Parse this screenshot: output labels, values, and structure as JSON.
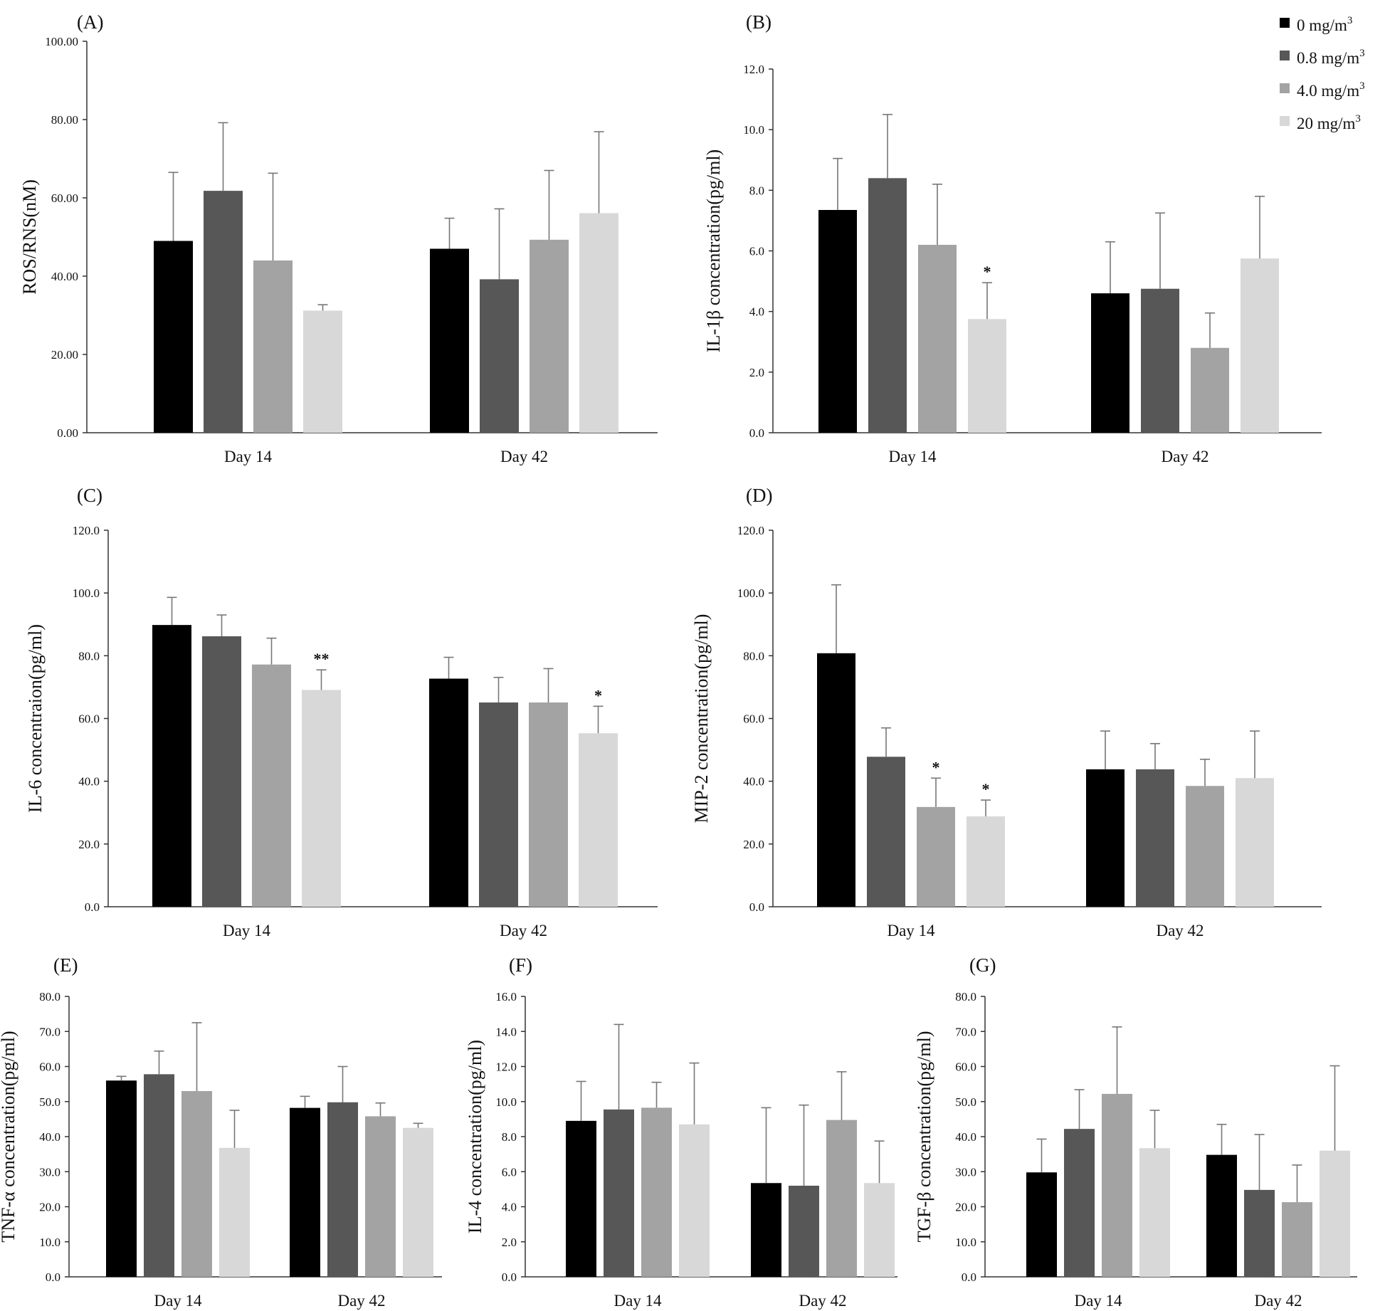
{
  "figure": {
    "legend": {
      "entries": [
        {
          "base": "0 mg/m",
          "sup": "3",
          "color": "#000000"
        },
        {
          "base": "0.8 mg/m",
          "sup": "3",
          "color": "#575757"
        },
        {
          "base": "4.0 mg/m",
          "sup": "3",
          "color": "#a3a3a3"
        },
        {
          "base": "20 mg/m",
          "sup": "3",
          "color": "#d8d8d8"
        }
      ]
    }
  },
  "chart_data": [
    {
      "panel": "(A)",
      "type": "bar",
      "ylabel": "ROS/RNS(nM)",
      "categories": [
        "Day 14",
        "Day 42"
      ],
      "ylim": [
        0,
        100
      ],
      "ytick_step": 20,
      "tick_decimals": 2,
      "series": [
        {
          "name": "0 mg/m3",
          "values": [
            49.0,
            47.0
          ],
          "errors": [
            17.5,
            7.8
          ]
        },
        {
          "name": "0.8 mg/m3",
          "values": [
            61.8,
            39.2
          ],
          "errors": [
            17.4,
            18.0
          ]
        },
        {
          "name": "4.0 mg/m3",
          "values": [
            44.0,
            49.3
          ],
          "errors": [
            22.3,
            17.7
          ]
        },
        {
          "name": "20 mg/m3",
          "values": [
            31.2,
            56.1
          ],
          "errors": [
            1.5,
            20.8
          ]
        }
      ],
      "annotations": [
        [
          "",
          ""
        ],
        [
          "",
          ""
        ],
        [
          "",
          ""
        ],
        [
          "",
          ""
        ]
      ]
    },
    {
      "panel": "(B)",
      "type": "bar",
      "ylabel": "IL-1β concentration(pg/ml)",
      "categories": [
        "Day 14",
        "Day 42"
      ],
      "ylim": [
        0,
        12
      ],
      "ytick_step": 2,
      "tick_decimals": 1,
      "series": [
        {
          "name": "0 mg/m3",
          "values": [
            7.35,
            4.6
          ],
          "errors": [
            1.7,
            1.7
          ]
        },
        {
          "name": "0.8 mg/m3",
          "values": [
            8.4,
            4.75
          ],
          "errors": [
            2.1,
            2.5
          ]
        },
        {
          "name": "4.0 mg/m3",
          "values": [
            6.2,
            2.8
          ],
          "errors": [
            2.0,
            1.15
          ]
        },
        {
          "name": "20 mg/m3",
          "values": [
            3.75,
            5.75
          ],
          "errors": [
            1.2,
            2.05
          ]
        }
      ],
      "annotations": [
        [
          "",
          ""
        ],
        [
          "",
          ""
        ],
        [
          "",
          ""
        ],
        [
          "*",
          ""
        ]
      ]
    },
    {
      "panel": "(C)",
      "type": "bar",
      "ylabel": "IL-6 concentraion(pg/ml)",
      "categories": [
        "Day 14",
        "Day 42"
      ],
      "ylim": [
        0,
        120
      ],
      "ytick_step": 20,
      "tick_decimals": 1,
      "series": [
        {
          "name": "0 mg/m3",
          "values": [
            89.8,
            72.7
          ],
          "errors": [
            8.8,
            6.8
          ]
        },
        {
          "name": "0.8 mg/m3",
          "values": [
            86.2,
            65.1
          ],
          "errors": [
            6.8,
            8.0
          ]
        },
        {
          "name": "4.0 mg/m3",
          "values": [
            77.2,
            65.1
          ],
          "errors": [
            8.4,
            10.8
          ]
        },
        {
          "name": "20 mg/m3",
          "values": [
            69.1,
            55.3
          ],
          "errors": [
            6.4,
            8.6
          ]
        }
      ],
      "annotations": [
        [
          "",
          ""
        ],
        [
          "",
          ""
        ],
        [
          "",
          ""
        ],
        [
          "**",
          "*"
        ]
      ]
    },
    {
      "panel": "(D)",
      "type": "bar",
      "ylabel": "MIP-2 concentration(pg/ml)",
      "categories": [
        "Day 14",
        "Day 42"
      ],
      "ylim": [
        0,
        120
      ],
      "ytick_step": 20,
      "tick_decimals": 1,
      "series": [
        {
          "name": "0 mg/m3",
          "values": [
            80.8,
            43.8
          ],
          "errors": [
            21.8,
            12.2
          ]
        },
        {
          "name": "0.8 mg/m3",
          "values": [
            47.8,
            43.8
          ],
          "errors": [
            9.2,
            8.2
          ]
        },
        {
          "name": "4.0 mg/m3",
          "values": [
            31.8,
            38.5
          ],
          "errors": [
            9.2,
            8.5
          ]
        },
        {
          "name": "20 mg/m3",
          "values": [
            28.8,
            41.0
          ],
          "errors": [
            5.2,
            15.0
          ]
        }
      ],
      "annotations": [
        [
          "",
          ""
        ],
        [
          "",
          ""
        ],
        [
          "*",
          ""
        ],
        [
          "*",
          ""
        ]
      ]
    },
    {
      "panel": "(E)",
      "type": "bar",
      "ylabel": "TNF-α concentration(pg/ml)",
      "categories": [
        "Day 14",
        "Day 42"
      ],
      "ylim": [
        0,
        80
      ],
      "ytick_step": 10,
      "tick_decimals": 1,
      "series": [
        {
          "name": "0 mg/m3",
          "values": [
            56.0,
            48.2
          ],
          "errors": [
            1.2,
            3.3
          ]
        },
        {
          "name": "0.8 mg/m3",
          "values": [
            57.8,
            49.8
          ],
          "errors": [
            6.6,
            10.2
          ]
        },
        {
          "name": "4.0 mg/m3",
          "values": [
            53.0,
            45.8
          ],
          "errors": [
            19.5,
            3.8
          ]
        },
        {
          "name": "20 mg/m3",
          "values": [
            36.8,
            42.5
          ],
          "errors": [
            10.7,
            1.3
          ]
        }
      ],
      "annotations": [
        [
          "",
          ""
        ],
        [
          "",
          ""
        ],
        [
          "",
          ""
        ],
        [
          "",
          ""
        ]
      ]
    },
    {
      "panel": "(F)",
      "type": "bar",
      "ylabel": "IL-4 concentration(pg/ml)",
      "categories": [
        "Day 14",
        "Day 42"
      ],
      "ylim": [
        0,
        16
      ],
      "ytick_step": 2,
      "tick_decimals": 1,
      "series": [
        {
          "name": "0 mg/m3",
          "values": [
            8.9,
            5.35
          ],
          "errors": [
            2.25,
            4.3
          ]
        },
        {
          "name": "0.8 mg/m3",
          "values": [
            9.55,
            5.2
          ],
          "errors": [
            4.85,
            4.6
          ]
        },
        {
          "name": "4.0 mg/m3",
          "values": [
            9.65,
            8.95
          ],
          "errors": [
            1.45,
            2.75
          ]
        },
        {
          "name": "20 mg/m3",
          "values": [
            8.7,
            5.35
          ],
          "errors": [
            3.5,
            2.4
          ]
        }
      ],
      "annotations": [
        [
          "",
          ""
        ],
        [
          "",
          ""
        ],
        [
          "",
          ""
        ],
        [
          "",
          ""
        ]
      ]
    },
    {
      "panel": "(G)",
      "type": "bar",
      "ylabel": "TGF-β concentration(pg/ml)",
      "categories": [
        "Day 14",
        "Day 42"
      ],
      "ylim": [
        0,
        80
      ],
      "ytick_step": 10,
      "tick_decimals": 1,
      "series": [
        {
          "name": "0 mg/m3",
          "values": [
            29.8,
            34.8
          ],
          "errors": [
            9.5,
            8.7
          ]
        },
        {
          "name": "0.8 mg/m3",
          "values": [
            42.2,
            24.8
          ],
          "errors": [
            11.2,
            15.8
          ]
        },
        {
          "name": "4.0 mg/m3",
          "values": [
            52.2,
            21.3
          ],
          "errors": [
            19.1,
            10.6
          ]
        },
        {
          "name": "20 mg/m3",
          "values": [
            36.7,
            36.0
          ],
          "errors": [
            10.8,
            24.2
          ]
        }
      ],
      "annotations": [
        [
          "",
          ""
        ],
        [
          "",
          ""
        ],
        [
          "",
          ""
        ],
        [
          "",
          ""
        ]
      ]
    }
  ]
}
